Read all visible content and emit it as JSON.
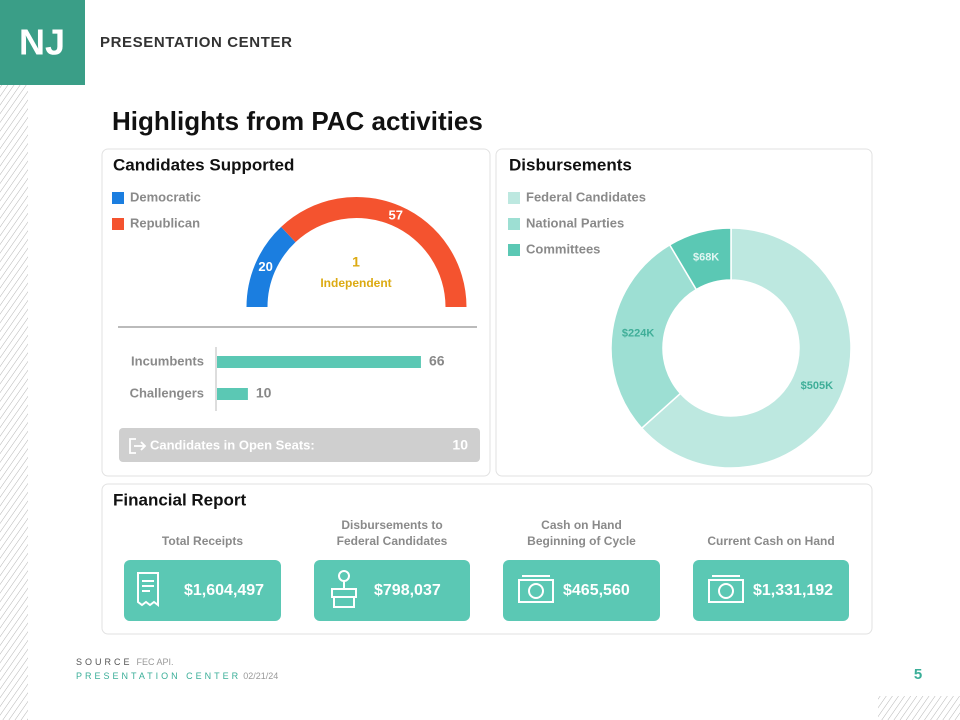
{
  "header": {
    "logo": "NJ",
    "brand": "PRESENTATION CENTER"
  },
  "title": "Highlights from PAC activities",
  "candidates": {
    "title": "Candidates Supported",
    "party_chart": {
      "type": "gauge",
      "categories": [
        "Democratic",
        "Republican"
      ],
      "values": [
        20,
        57
      ],
      "colors": [
        "#1b7ee0",
        "#f4532f"
      ]
    },
    "independent": {
      "value": 1,
      "label": "Independent",
      "color": "#dcaa12"
    },
    "status_chart": {
      "type": "bar",
      "categories": [
        "Incumbents",
        "Challengers"
      ],
      "values": [
        66,
        10
      ],
      "color": "#5bc8b4"
    },
    "open_seats": {
      "label": "Candidates in Open Seats:",
      "value": 10
    }
  },
  "disbursements": {
    "title": "Disbursements",
    "chart": {
      "type": "donut",
      "categories": [
        "Federal Candidates",
        "National Parties",
        "Committees"
      ],
      "values": [
        505000,
        224000,
        68000
      ],
      "value_labels": [
        "$505K",
        "$224K",
        "$68K"
      ],
      "colors": [
        "#bde8e0",
        "#9ddfd3",
        "#5bc8b4"
      ]
    }
  },
  "financial_report": {
    "title": "Financial Report",
    "cards": [
      {
        "label": [
          "Total Receipts"
        ],
        "value": "$1,604,497"
      },
      {
        "label": [
          "Disbursements  to",
          "Federal Candidates"
        ],
        "value": "$798,037"
      },
      {
        "label": [
          "Cash on Hand",
          "Beginning of Cycle"
        ],
        "value": "$465,560"
      },
      {
        "label": [
          "Current Cash on Hand"
        ],
        "value": "$1,331,192"
      }
    ]
  },
  "footer": {
    "source_label": "SOURCE",
    "source": "FEC API.",
    "brand": "PRESENTATION CENTER",
    "date": "02/21/24",
    "page": "5"
  }
}
